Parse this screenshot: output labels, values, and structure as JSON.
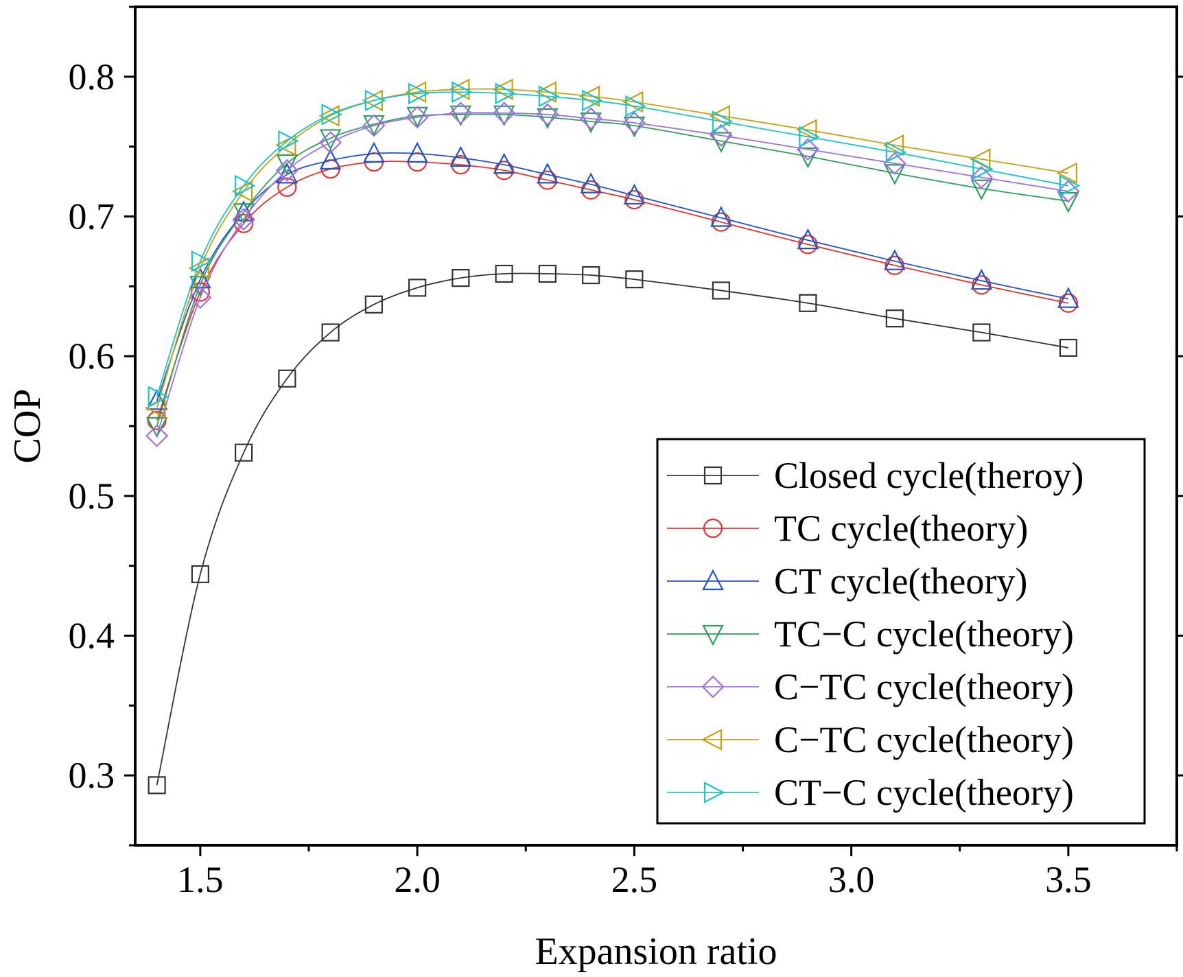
{
  "chart_data": {
    "type": "line",
    "title": "",
    "xlabel": "Expansion ratio",
    "ylabel": "COP",
    "xlim": [
      1.35,
      3.75
    ],
    "ylim": [
      0.25,
      0.85
    ],
    "x_ticks": [
      1.5,
      2.0,
      2.5,
      3.0,
      3.5
    ],
    "x_tick_labels": [
      "1.5",
      "2.0",
      "2.5",
      "3.0",
      "3.5"
    ],
    "y_ticks": [
      0.3,
      0.4,
      0.5,
      0.6,
      0.7,
      0.8
    ],
    "y_tick_labels": [
      "0.3",
      "0.4",
      "0.5",
      "0.6",
      "0.7",
      "0.8"
    ],
    "grid": false,
    "legend_position": "bottom-right",
    "x": [
      1.4,
      1.5,
      1.6,
      1.7,
      1.8,
      1.9,
      2.0,
      2.1,
      2.2,
      2.3,
      2.4,
      2.5,
      2.7,
      2.9,
      3.1,
      3.3,
      3.5
    ],
    "series": [
      {
        "name": "Closed cycle(theroy)",
        "color": "#333333",
        "marker": "square",
        "values": [
          0.293,
          0.444,
          0.531,
          0.584,
          0.617,
          0.637,
          0.649,
          0.656,
          0.659,
          0.659,
          0.658,
          0.655,
          0.647,
          0.638,
          0.627,
          0.617,
          0.606
        ]
      },
      {
        "name": "TC cycle(theory)",
        "color": "#e8332d",
        "marker": "circle",
        "values": [
          0.554,
          0.646,
          0.695,
          0.721,
          0.734,
          0.739,
          0.739,
          0.737,
          0.733,
          0.726,
          0.719,
          0.712,
          0.696,
          0.68,
          0.665,
          0.651,
          0.638
        ]
      },
      {
        "name": "CT cycle(theory)",
        "color": "#1f55c8",
        "marker": "triangle-up",
        "values": [
          0.568,
          0.655,
          0.703,
          0.73,
          0.74,
          0.745,
          0.745,
          0.742,
          0.737,
          0.73,
          0.723,
          0.715,
          0.699,
          0.683,
          0.668,
          0.654,
          0.641
        ]
      },
      {
        "name": "TC−C cycle(theory)",
        "color": "#2ca05a",
        "marker": "triangle-down",
        "values": [
          0.55,
          0.651,
          0.703,
          0.738,
          0.756,
          0.766,
          0.772,
          0.773,
          0.773,
          0.771,
          0.768,
          0.765,
          0.754,
          0.743,
          0.731,
          0.72,
          0.711
        ]
      },
      {
        "name": "C−TC cycle(theory)",
        "color": "#a070e0",
        "marker": "diamond",
        "values": [
          0.543,
          0.642,
          0.698,
          0.733,
          0.753,
          0.765,
          0.771,
          0.774,
          0.774,
          0.773,
          0.77,
          0.767,
          0.758,
          0.748,
          0.738,
          0.728,
          0.718
        ]
      },
      {
        "name": "C−TC cycle(theory)",
        "color": "#c9a012",
        "marker": "triangle-left",
        "values": [
          0.563,
          0.663,
          0.718,
          0.751,
          0.772,
          0.783,
          0.789,
          0.791,
          0.791,
          0.789,
          0.786,
          0.782,
          0.772,
          0.762,
          0.751,
          0.741,
          0.731
        ]
      },
      {
        "name": "CT−C cycle(theory)",
        "color": "#17c4cf",
        "marker": "triangle-right",
        "values": [
          0.571,
          0.668,
          0.722,
          0.754,
          0.773,
          0.783,
          0.788,
          0.789,
          0.788,
          0.786,
          0.783,
          0.779,
          0.768,
          0.757,
          0.746,
          0.734,
          0.722
        ]
      }
    ]
  }
}
